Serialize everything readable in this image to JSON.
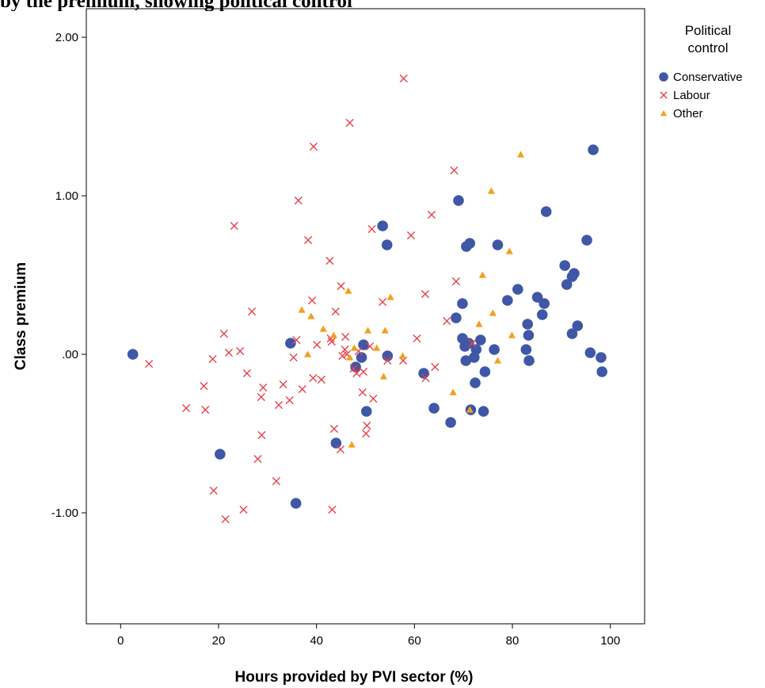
{
  "page": {
    "title_fragment": "by the premium, showing political control"
  },
  "colors": {
    "conservative": "#3f57a6",
    "labour": "#e8424c",
    "other": "#f2a020",
    "frame": "#000000",
    "background": "#ffffff"
  },
  "chart_data": {
    "type": "scatter",
    "title": "",
    "xlabel": "Hours provided by PVI sector (%)",
    "ylabel": "Class premium",
    "xlim": [
      -7,
      107
    ],
    "ylim": [
      -1.7,
      2.18
    ],
    "x_ticks": [
      0,
      20,
      40,
      60,
      80,
      100
    ],
    "x_tick_labels": [
      "0",
      "20",
      "40",
      "60",
      "80",
      "100"
    ],
    "y_ticks": [
      2.0,
      1.0,
      0.0,
      -1.0
    ],
    "y_tick_labels": [
      "2.00",
      "1.00",
      ".00",
      "-1.00"
    ],
    "grid": false,
    "legend": {
      "title": "Political control",
      "title_lines": [
        "Political",
        "control"
      ],
      "position": "right",
      "entries": [
        "Conservative",
        "Labour",
        "Other"
      ]
    },
    "series": [
      {
        "name": "Conservative",
        "marker": "circle",
        "color": "#3f57a6",
        "points": [
          [
            2.5,
            0.0
          ],
          [
            20.3,
            -0.63
          ],
          [
            34.7,
            0.07
          ],
          [
            35.8,
            -0.94
          ],
          [
            44,
            -0.56
          ],
          [
            48,
            -0.08
          ],
          [
            49.2,
            -0.02
          ],
          [
            49.6,
            0.06
          ],
          [
            50.2,
            -0.36
          ],
          [
            53.5,
            0.81
          ],
          [
            54.4,
            0.69
          ],
          [
            54.5,
            -0.01
          ],
          [
            61.9,
            -0.12
          ],
          [
            64,
            -0.34
          ],
          [
            67.4,
            -0.43
          ],
          [
            68.5,
            0.23
          ],
          [
            69,
            0.97
          ],
          [
            69.8,
            0.32
          ],
          [
            69.8,
            0.1
          ],
          [
            70.3,
            0.05
          ],
          [
            70.5,
            -0.04
          ],
          [
            70.6,
            0.68
          ],
          [
            71.1,
            0.07
          ],
          [
            71.3,
            0.7
          ],
          [
            71.5,
            -0.35
          ],
          [
            72.2,
            -0.02
          ],
          [
            72.4,
            -0.18
          ],
          [
            72.6,
            0.03
          ],
          [
            73.5,
            0.09
          ],
          [
            74.1,
            -0.36
          ],
          [
            74.4,
            -0.11
          ],
          [
            76.3,
            0.03
          ],
          [
            77,
            0.69
          ],
          [
            79,
            0.34
          ],
          [
            81.1,
            0.41
          ],
          [
            82.8,
            0.03
          ],
          [
            83.1,
            0.19
          ],
          [
            83.3,
            0.12
          ],
          [
            83.4,
            -0.04
          ],
          [
            85.1,
            0.36
          ],
          [
            86.1,
            0.25
          ],
          [
            86.5,
            0.32
          ],
          [
            86.9,
            0.9
          ],
          [
            90.7,
            0.56
          ],
          [
            91.1,
            0.44
          ],
          [
            92.2,
            0.49
          ],
          [
            92.2,
            0.13
          ],
          [
            92.6,
            0.51
          ],
          [
            93.3,
            0.18
          ],
          [
            95.2,
            0.72
          ],
          [
            95.9,
            0.01
          ],
          [
            96.5,
            1.29
          ],
          [
            98.1,
            -0.02
          ],
          [
            98.3,
            -0.11
          ]
        ]
      },
      {
        "name": "Labour",
        "marker": "x",
        "color": "#e8424c",
        "points": [
          [
            5.8,
            -0.06
          ],
          [
            13.4,
            -0.34
          ],
          [
            17,
            -0.2
          ],
          [
            17.3,
            -0.35
          ],
          [
            18.8,
            -0.03
          ],
          [
            19,
            -0.86
          ],
          [
            21.1,
            0.13
          ],
          [
            21.4,
            -1.04
          ],
          [
            22.1,
            0.01
          ],
          [
            23.2,
            0.81
          ],
          [
            24.4,
            0.02
          ],
          [
            25.1,
            -0.98
          ],
          [
            25.8,
            -0.12
          ],
          [
            26.8,
            0.27
          ],
          [
            28,
            -0.66
          ],
          [
            28.7,
            -0.27
          ],
          [
            28.8,
            -0.51
          ],
          [
            29.1,
            -0.21
          ],
          [
            31.8,
            -0.8
          ],
          [
            32.3,
            -0.32
          ],
          [
            33.2,
            -0.19
          ],
          [
            34.5,
            -0.29
          ],
          [
            35.3,
            -0.02
          ],
          [
            35.9,
            0.09
          ],
          [
            36.3,
            0.97
          ],
          [
            37.1,
            -0.22
          ],
          [
            38.3,
            0.72
          ],
          [
            39.1,
            0.34
          ],
          [
            39.3,
            -0.15
          ],
          [
            39.4,
            1.31
          ],
          [
            40.1,
            0.06
          ],
          [
            41,
            -0.16
          ],
          [
            42.7,
            0.59
          ],
          [
            42.9,
            0.1
          ],
          [
            43.1,
            0.08
          ],
          [
            43.2,
            -0.98
          ],
          [
            43.6,
            -0.47
          ],
          [
            43.9,
            0.27
          ],
          [
            44.9,
            -0.6
          ],
          [
            45,
            0.43
          ],
          [
            45.3,
            -0.01
          ],
          [
            45.8,
            0.03
          ],
          [
            45.9,
            0.11
          ],
          [
            46.2,
            0.0
          ],
          [
            46.8,
            1.46
          ],
          [
            47.6,
            -0.09
          ],
          [
            48.2,
            -0.12
          ],
          [
            48.6,
            0.02
          ],
          [
            49.4,
            -0.24
          ],
          [
            49.6,
            -0.11
          ],
          [
            50.1,
            -0.5
          ],
          [
            50.3,
            -0.45
          ],
          [
            50.9,
            0.05
          ],
          [
            51.3,
            0.79
          ],
          [
            51.6,
            -0.28
          ],
          [
            53.5,
            0.33
          ],
          [
            54.5,
            -0.04
          ],
          [
            57.7,
            -0.04
          ],
          [
            57.8,
            1.74
          ],
          [
            59.3,
            0.75
          ],
          [
            60.5,
            0.1
          ],
          [
            62.2,
            0.38
          ],
          [
            62.3,
            -0.15
          ],
          [
            63.5,
            0.88
          ],
          [
            64.2,
            -0.08
          ],
          [
            66.6,
            0.21
          ],
          [
            68.1,
            1.16
          ],
          [
            68.5,
            0.46
          ],
          [
            71.8,
            0.07
          ]
        ]
      },
      {
        "name": "Other",
        "marker": "triangle",
        "color": "#f2a020",
        "points": [
          [
            37,
            0.28
          ],
          [
            38.2,
            0.0
          ],
          [
            38.9,
            0.24
          ],
          [
            41.4,
            0.16
          ],
          [
            43.5,
            0.12
          ],
          [
            46.5,
            0.4
          ],
          [
            46.8,
            -0.02
          ],
          [
            47.2,
            -0.57
          ],
          [
            47.7,
            0.04
          ],
          [
            50.5,
            0.15
          ],
          [
            52.3,
            0.04
          ],
          [
            53.7,
            -0.14
          ],
          [
            54,
            0.15
          ],
          [
            55.1,
            0.36
          ],
          [
            57.6,
            -0.01
          ],
          [
            67.9,
            -0.24
          ],
          [
            71.3,
            -0.35
          ],
          [
            73.2,
            0.19
          ],
          [
            73.9,
            0.5
          ],
          [
            75.7,
            1.03
          ],
          [
            76,
            0.26
          ],
          [
            77,
            -0.04
          ],
          [
            79.4,
            0.65
          ],
          [
            79.9,
            0.12
          ],
          [
            81.7,
            1.26
          ]
        ]
      }
    ]
  }
}
